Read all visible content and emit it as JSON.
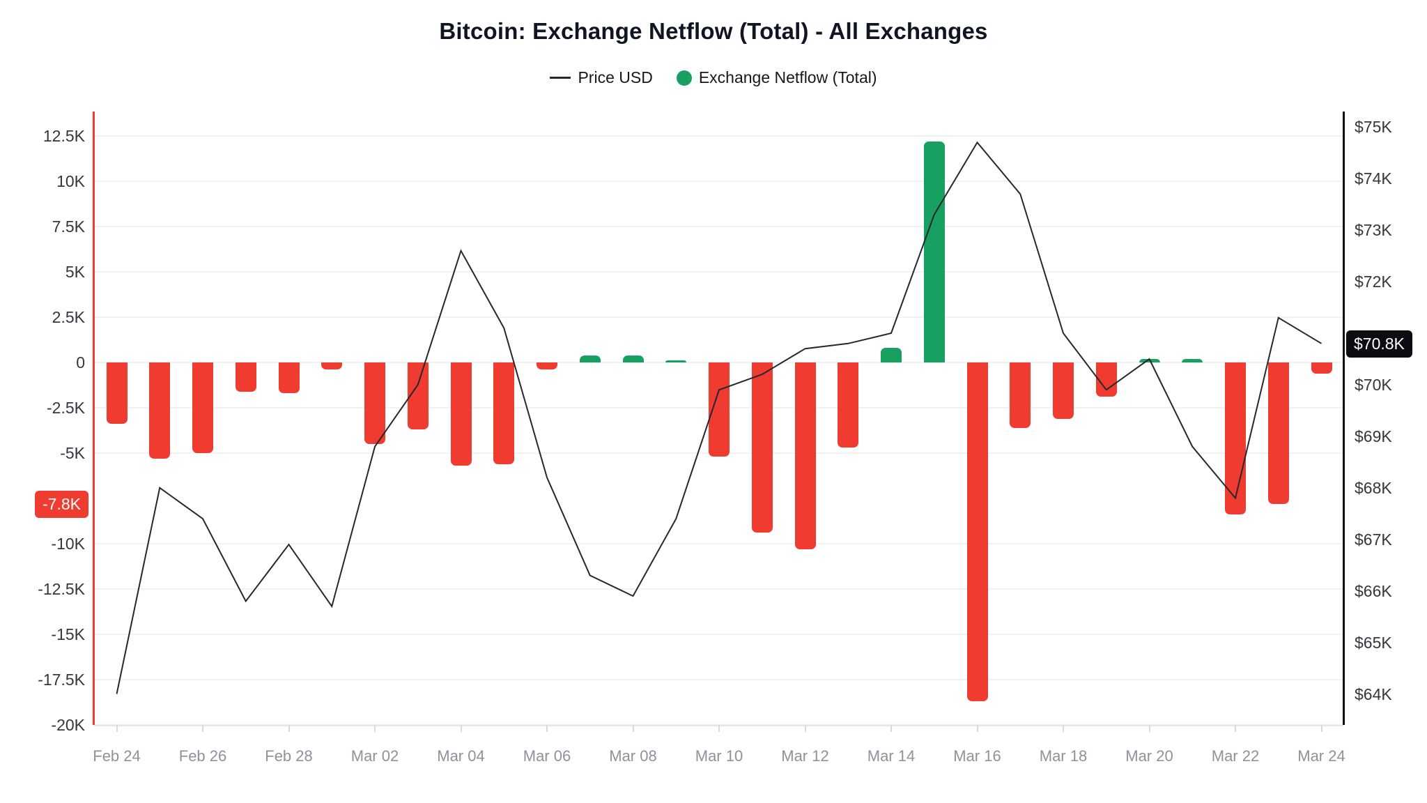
{
  "header": {
    "title": "Bitcoin: Exchange Netflow (Total) - All Exchanges"
  },
  "legend": [
    {
      "label": "Price USD",
      "marker": "line",
      "color": "#24272e"
    },
    {
      "label": "Exchange Netflow (Total)",
      "marker": "circle",
      "color": "#17a05f"
    }
  ],
  "chart_data": {
    "type": "bar",
    "subtype": "bar-with-line-overlay",
    "title": "Bitcoin: Exchange Netflow (Total) - All Exchanges",
    "x": [
      "Feb 24",
      "Feb 25",
      "Feb 26",
      "Feb 27",
      "Feb 28",
      "Mar 01",
      "Mar 02",
      "Mar 03",
      "Mar 04",
      "Mar 05",
      "Mar 06",
      "Mar 07",
      "Mar 08",
      "Mar 09",
      "Mar 10",
      "Mar 11",
      "Mar 12",
      "Mar 13",
      "Mar 14",
      "Mar 15",
      "Mar 16",
      "Mar 17",
      "Mar 18",
      "Mar 19",
      "Mar 20",
      "Mar 21",
      "Mar 22",
      "Mar 23",
      "Mar 24"
    ],
    "x_ticks": [
      {
        "label": "Feb 24",
        "index": 0
      },
      {
        "label": "Feb 26",
        "index": 2
      },
      {
        "label": "Feb 28",
        "index": 4
      },
      {
        "label": "Mar 02",
        "index": 6
      },
      {
        "label": "Mar 04",
        "index": 8
      },
      {
        "label": "Mar 06",
        "index": 10
      },
      {
        "label": "Mar 08",
        "index": 12
      },
      {
        "label": "Mar 10",
        "index": 14
      },
      {
        "label": "Mar 12",
        "index": 16
      },
      {
        "label": "Mar 14",
        "index": 18
      },
      {
        "label": "Mar 16",
        "index": 20
      },
      {
        "label": "Mar 18",
        "index": 22
      },
      {
        "label": "Mar 20",
        "index": 24
      },
      {
        "label": "Mar 22",
        "index": 26
      },
      {
        "label": "Mar 24",
        "index": 28
      }
    ],
    "series": [
      {
        "name": "Exchange Netflow (Total)",
        "type": "bar",
        "unit": "K BTC",
        "axis": "left",
        "color_positive": "#17a05f",
        "color_negative": "#f03b30",
        "values": [
          -3.4,
          -5.3,
          -5.0,
          -1.6,
          -1.7,
          -0.4,
          -4.5,
          -3.7,
          -5.7,
          -5.6,
          -0.4,
          0.4,
          0.4,
          0.1,
          -5.2,
          -9.4,
          -10.3,
          -4.7,
          0.8,
          12.2,
          -18.7,
          -3.6,
          -3.1,
          -1.9,
          0.2,
          0.2,
          -8.4,
          -7.8,
          -0.6
        ]
      },
      {
        "name": "Price USD",
        "type": "line",
        "unit": "K USD",
        "axis": "right",
        "color": "#24272e",
        "values": [
          64.0,
          68.0,
          67.4,
          65.8,
          66.9,
          65.7,
          68.8,
          70.0,
          72.6,
          71.1,
          68.2,
          66.3,
          65.9,
          67.4,
          69.9,
          70.2,
          70.7,
          70.8,
          71.0,
          73.3,
          74.7,
          73.7,
          71.0,
          69.9,
          70.5,
          68.8,
          67.8,
          71.3,
          70.8
        ]
      }
    ],
    "left_axis": {
      "title": "Exchange Netflow (Total)",
      "ylim": [
        -20,
        13.85
      ],
      "axis_color": "#f03b30",
      "ticks": [
        {
          "label": "12.5K",
          "value": 12.5
        },
        {
          "label": "10K",
          "value": 10
        },
        {
          "label": "7.5K",
          "value": 7.5
        },
        {
          "label": "5K",
          "value": 5
        },
        {
          "label": "2.5K",
          "value": 2.5
        },
        {
          "label": "0",
          "value": 0
        },
        {
          "label": "-2.5K",
          "value": -2.5
        },
        {
          "label": "-5K",
          "value": -5
        },
        {
          "label": "-10K",
          "value": -10
        },
        {
          "label": "-12.5K",
          "value": -12.5
        },
        {
          "label": "-15K",
          "value": -15
        },
        {
          "label": "-17.5K",
          "value": -17.5
        },
        {
          "label": "-20K",
          "value": -20
        }
      ],
      "badge": {
        "label": "-7.8K",
        "value": -7.8,
        "bg": "#f03b30"
      }
    },
    "right_axis": {
      "title": "Price USD",
      "ylim": [
        63.4,
        75.3
      ],
      "axis_color": "#0c0d10",
      "ticks": [
        {
          "label": "$75K",
          "value": 75
        },
        {
          "label": "$74K",
          "value": 74
        },
        {
          "label": "$73K",
          "value": 73
        },
        {
          "label": "$72K",
          "value": 72
        },
        {
          "label": "$70K",
          "value": 70
        },
        {
          "label": "$69K",
          "value": 69
        },
        {
          "label": "$68K",
          "value": 68
        },
        {
          "label": "$67K",
          "value": 67
        },
        {
          "label": "$66K",
          "value": 66
        },
        {
          "label": "$65K",
          "value": 65
        },
        {
          "label": "$64K",
          "value": 64
        }
      ],
      "badge": {
        "label": "$70.8K",
        "value": 70.8,
        "bg": "#0c0d10"
      }
    },
    "grid": true,
    "legend_position": "top"
  }
}
